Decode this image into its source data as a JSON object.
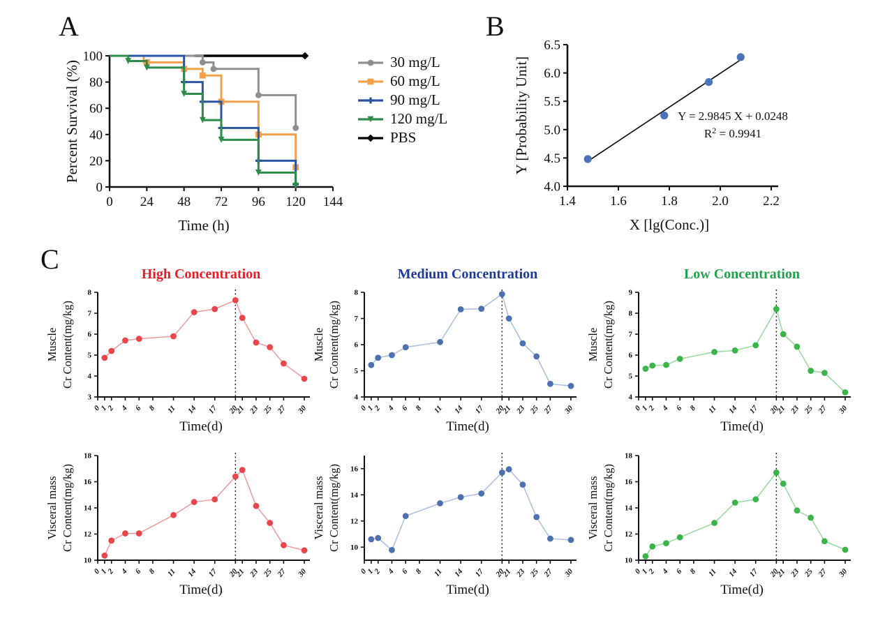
{
  "panels": {
    "a": "A",
    "b": "B",
    "c": "C"
  },
  "chart_data": [
    {
      "id": "survival",
      "panel": "A",
      "type": "survival",
      "title": "",
      "xlabel": "Time (h)",
      "ylabel": "Percent Survival (%)",
      "xlim": [
        0,
        144
      ],
      "ylim": [
        0,
        100
      ],
      "xticks": [
        0,
        24,
        48,
        72,
        96,
        120,
        144
      ],
      "xtick_labels": [
        "0",
        "24",
        "48",
        "72",
        "96",
        "120",
        "144"
      ],
      "yticks": [
        0,
        20,
        40,
        60,
        80,
        100
      ],
      "ytick_labels": [
        "0",
        "20",
        "40",
        "60",
        "80",
        "100"
      ],
      "grid": false,
      "legend_position": "right",
      "legend": [
        {
          "label": "30 mg/L",
          "color": "#8F8F8F",
          "marker": "circle"
        },
        {
          "label": "60 mg/L",
          "color": "#F5A04B",
          "marker": "square"
        },
        {
          "label": "90 mg/L",
          "color": "#2B55A3",
          "marker": "plus"
        },
        {
          "label": "120 mg/L",
          "color": "#2E8B4A",
          "marker": "triangle"
        },
        {
          "label": "PBS",
          "color": "#000000",
          "marker": "diamond"
        }
      ],
      "series": [
        {
          "name": "PBS",
          "color": "#000000",
          "marker": "diamond",
          "width": 3.4,
          "path": [
            [
              55,
              100
            ],
            [
              126,
              100
            ]
          ],
          "markers": [
            [
              126,
              100
            ]
          ]
        },
        {
          "name": "30 mg/L",
          "color": "#8F8F8F",
          "marker": "circle",
          "width": 3,
          "path": [
            [
              0,
              100
            ],
            [
              60,
              100
            ],
            [
              60,
              95
            ],
            [
              67,
              95
            ],
            [
              67,
              90
            ],
            [
              96,
              90
            ],
            [
              96,
              70
            ],
            [
              120,
              70
            ],
            [
              120,
              45
            ]
          ],
          "markers": [
            [
              60,
              95
            ],
            [
              67,
              90
            ],
            [
              96,
              70
            ],
            [
              120,
              45
            ]
          ]
        },
        {
          "name": "60 mg/L",
          "color": "#F5A04B",
          "marker": "square",
          "width": 3,
          "path": [
            [
              0,
              100
            ],
            [
              22,
              100
            ],
            [
              22,
              95
            ],
            [
              48,
              95
            ],
            [
              48,
              90
            ],
            [
              60,
              90
            ],
            [
              60,
              85
            ],
            [
              72,
              85
            ],
            [
              72,
              65
            ],
            [
              96,
              65
            ],
            [
              96,
              40
            ],
            [
              120,
              40
            ],
            [
              120,
              15
            ]
          ],
          "markers": [
            [
              24,
              95
            ],
            [
              48,
              90
            ],
            [
              60,
              85
            ],
            [
              72,
              65
            ],
            [
              96,
              40
            ],
            [
              120,
              15
            ]
          ]
        },
        {
          "name": "90 mg/L",
          "color": "#2B55A3",
          "marker": "plus",
          "width": 3,
          "path": [
            [
              0,
              100
            ],
            [
              48,
              100
            ],
            [
              48,
              80
            ],
            [
              60,
              80
            ],
            [
              60,
              65
            ],
            [
              72,
              65
            ],
            [
              72,
              45
            ],
            [
              96,
              45
            ],
            [
              96,
              20
            ],
            [
              120,
              20
            ],
            [
              120,
              2
            ]
          ],
          "markers": [
            [
              48,
              80
            ],
            [
              60,
              65
            ],
            [
              72,
              45
            ],
            [
              96,
              20
            ],
            [
              120,
              2
            ]
          ]
        },
        {
          "name": "120 mg/L",
          "color": "#2E8B4A",
          "marker": "triangle",
          "width": 3,
          "path": [
            [
              0,
              100
            ],
            [
              12,
              100
            ],
            [
              12,
              96
            ],
            [
              24,
              96
            ],
            [
              24,
              91
            ],
            [
              48,
              91
            ],
            [
              48,
              71
            ],
            [
              60,
              71
            ],
            [
              60,
              51
            ],
            [
              72,
              51
            ],
            [
              72,
              36
            ],
            [
              96,
              36
            ],
            [
              96,
              11
            ],
            [
              120,
              11
            ],
            [
              120,
              1
            ]
          ],
          "markers": [
            [
              12,
              96
            ],
            [
              24,
              91
            ],
            [
              48,
              71
            ],
            [
              60,
              51
            ],
            [
              72,
              36
            ],
            [
              96,
              11
            ],
            [
              120,
              1
            ]
          ]
        }
      ]
    },
    {
      "id": "probit",
      "panel": "B",
      "type": "scatter",
      "title": "",
      "xlabel": "X [lg(Conc.)]",
      "ylabel": "Y [Probability Unit]",
      "xlim": [
        1.4,
        2.2
      ],
      "ylim": [
        4.0,
        6.5
      ],
      "xticks": [
        1.4,
        1.6,
        1.8,
        2.0,
        2.2
      ],
      "xtick_labels": [
        "1.4",
        "1.6",
        "1.8",
        "2.0",
        "2.2"
      ],
      "yticks": [
        4.0,
        4.5,
        5.0,
        5.5,
        6.0,
        6.5
      ],
      "ytick_labels": [
        "4.0",
        "4.5",
        "5.0",
        "5.5",
        "6.0",
        "6.5"
      ],
      "grid": false,
      "point_color": "#4C72B8",
      "line_color": "#111111",
      "points": [
        [
          1.48,
          4.48
        ],
        [
          1.78,
          5.25
        ],
        [
          1.955,
          5.84
        ],
        [
          2.08,
          6.28
        ]
      ],
      "fit_line": [
        [
          1.48,
          4.442
        ],
        [
          2.08,
          6.233
        ]
      ],
      "annotation": {
        "equation": "Y = 2.9845 X + 0.0248",
        "r2_base": "R",
        "r2_sup": "2",
        "r2_rest": " = 0.9941"
      }
    },
    {
      "id": "muscle-high",
      "panel": "C",
      "row": 1,
      "col": 1,
      "type": "timeseries",
      "title": "High Concentration",
      "title_color": "#ED1C24",
      "ylabel_line1": "Muscle",
      "ylabel_line2": "Cr Content(mg/kg)",
      "xlabel": "Time(d)",
      "xlim": [
        0,
        30
      ],
      "ylim": [
        3,
        8
      ],
      "xticks": [
        0,
        1,
        2,
        4,
        6,
        8,
        11,
        14,
        17,
        20,
        21,
        23,
        25,
        27,
        30
      ],
      "xtick_labels": [
        "0",
        "1",
        "2",
        "4",
        "6",
        "8",
        "11",
        "14",
        "17",
        "20",
        "21",
        "23",
        "25",
        "27",
        "30"
      ],
      "yticks": [
        3,
        4,
        5,
        6,
        7,
        8
      ],
      "ytick_labels": [
        "3",
        "4",
        "5",
        "6",
        "7",
        "8"
      ],
      "vline": 20,
      "x": [
        1,
        2,
        4,
        6,
        11,
        14,
        17,
        20,
        21,
        23,
        25,
        27,
        30
      ],
      "y": [
        4.87,
        5.2,
        5.7,
        5.78,
        5.9,
        7.05,
        7.2,
        7.62,
        6.78,
        5.6,
        5.38,
        4.6,
        3.87
      ],
      "marker_color": "#E8464B",
      "line_color": "#F19A9C"
    },
    {
      "id": "muscle-medium",
      "panel": "C",
      "row": 1,
      "col": 2,
      "type": "timeseries",
      "title": "Medium Concentration",
      "title_color": "#1E3A9C",
      "ylabel_line1": "Muscle",
      "ylabel_line2": "Cr Content(mg/kg)",
      "xlabel": "Time(d)",
      "xlim": [
        0,
        30
      ],
      "ylim": [
        4,
        8
      ],
      "xticks": [
        0,
        1,
        2,
        4,
        6,
        8,
        11,
        14,
        17,
        20,
        21,
        23,
        25,
        27,
        30
      ],
      "xtick_labels": [
        "0",
        "1",
        "2",
        "4",
        "6",
        "8",
        "11",
        "14",
        "17",
        "20",
        "21",
        "23",
        "25",
        "27",
        "30"
      ],
      "yticks": [
        4,
        5,
        6,
        7,
        8
      ],
      "ytick_labels": [
        "4",
        "5",
        "6",
        "7",
        "8"
      ],
      "vline": 20,
      "x": [
        1,
        2,
        4,
        6,
        11,
        14,
        17,
        20,
        21,
        23,
        25,
        27,
        30
      ],
      "y": [
        5.22,
        5.5,
        5.6,
        5.9,
        6.1,
        7.35,
        7.37,
        7.93,
        7.0,
        6.05,
        5.55,
        4.5,
        4.42
      ],
      "marker_color": "#4C70B0",
      "line_color": "#A9BFE2"
    },
    {
      "id": "muscle-low",
      "panel": "C",
      "row": 1,
      "col": 3,
      "type": "timeseries",
      "title": "Low Concentration",
      "title_color": "#22A24C",
      "ylabel_line1": "Muscle",
      "ylabel_line2": "Cr Content(mg/kg)",
      "xlabel": "Time(d)",
      "xlim": [
        0,
        30
      ],
      "ylim": [
        4,
        9
      ],
      "xticks": [
        0,
        1,
        2,
        4,
        6,
        8,
        11,
        14,
        17,
        20,
        21,
        23,
        25,
        27,
        30
      ],
      "xtick_labels": [
        "0",
        "1",
        "2",
        "4",
        "6",
        "8",
        "11",
        "14",
        "17",
        "20",
        "21",
        "23",
        "25",
        "27",
        "30"
      ],
      "yticks": [
        4,
        5,
        6,
        7,
        8,
        9
      ],
      "ytick_labels": [
        "4",
        "5",
        "6",
        "7",
        "8",
        "9"
      ],
      "vline": 20,
      "x": [
        1,
        2,
        4,
        6,
        11,
        14,
        17,
        20,
        21,
        23,
        25,
        27,
        30
      ],
      "y": [
        5.35,
        5.5,
        5.53,
        5.82,
        6.15,
        6.22,
        6.47,
        8.2,
        7.0,
        6.4,
        5.25,
        5.15,
        4.22
      ],
      "marker_color": "#3BB54A",
      "line_color": "#97D99E"
    },
    {
      "id": "visceral-high",
      "panel": "C",
      "row": 2,
      "col": 1,
      "type": "timeseries",
      "title": "",
      "title_color": "#ED1C24",
      "ylabel_line1": "Visceral mass",
      "ylabel_line2": "Cr Content(mg/kg)",
      "xlabel": "Time(d)",
      "xlim": [
        0,
        30
      ],
      "ylim": [
        10,
        18
      ],
      "xticks": [
        0,
        1,
        2,
        4,
        6,
        8,
        11,
        14,
        17,
        20,
        21,
        23,
        25,
        27,
        30
      ],
      "xtick_labels": [
        "0",
        "1",
        "2",
        "4",
        "6",
        "8",
        "11",
        "14",
        "17",
        "20",
        "21",
        "23",
        "25",
        "27",
        "30"
      ],
      "yticks": [
        10,
        12,
        14,
        16,
        18
      ],
      "ytick_labels": [
        "10",
        "12",
        "14",
        "16",
        "18"
      ],
      "vline": 20,
      "x": [
        1,
        2,
        4,
        6,
        11,
        14,
        17,
        20,
        21,
        23,
        25,
        27,
        30
      ],
      "y": [
        10.35,
        11.5,
        12.05,
        12.05,
        13.45,
        14.45,
        14.65,
        16.4,
        16.9,
        14.15,
        12.85,
        11.15,
        10.75
      ],
      "marker_color": "#E8464B",
      "line_color": "#F19A9C"
    },
    {
      "id": "visceral-medium",
      "panel": "C",
      "row": 2,
      "col": 2,
      "type": "timeseries",
      "title": "",
      "title_color": "#1E3A9C",
      "ylabel_line1": "Visceral mass",
      "ylabel_line2": "Cr Content(mg/kg)",
      "xlabel": "Time(d)",
      "xlim": [
        0,
        30
      ],
      "ylim": [
        9,
        17
      ],
      "xticks": [
        0,
        1,
        2,
        4,
        6,
        8,
        11,
        14,
        17,
        20,
        21,
        23,
        25,
        27,
        30
      ],
      "xtick_labels": [
        "0",
        "1",
        "2",
        "4",
        "6",
        "8",
        "11",
        "14",
        "17",
        "20",
        "21",
        "23",
        "25",
        "27",
        "30"
      ],
      "yticks": [
        10,
        12,
        14,
        16
      ],
      "ytick_labels": [
        "10",
        "12",
        "14",
        "16"
      ],
      "vline": 20,
      "x": [
        1,
        2,
        4,
        6,
        11,
        14,
        17,
        20,
        21,
        23,
        25,
        27,
        30
      ],
      "y": [
        10.6,
        10.7,
        9.78,
        12.38,
        13.35,
        13.82,
        14.1,
        15.7,
        15.95,
        14.78,
        12.3,
        10.65,
        10.55
      ],
      "marker_color": "#4C70B0",
      "line_color": "#A9BFE2"
    },
    {
      "id": "visceral-low",
      "panel": "C",
      "row": 2,
      "col": 3,
      "type": "timeseries",
      "title": "",
      "title_color": "#22A24C",
      "ylabel_line1": "Visceral mass",
      "ylabel_line2": "Cr Content(mg/kg)",
      "xlabel": "Time(d)",
      "xlim": [
        0,
        30
      ],
      "ylim": [
        10,
        18
      ],
      "xticks": [
        0,
        1,
        2,
        4,
        6,
        8,
        11,
        14,
        17,
        20,
        21,
        23,
        25,
        27,
        30
      ],
      "xtick_labels": [
        "0",
        "1",
        "2",
        "4",
        "6",
        "8",
        "11",
        "14",
        "17",
        "20",
        "21",
        "23",
        "25",
        "27",
        "30"
      ],
      "yticks": [
        10,
        12,
        14,
        16,
        18
      ],
      "ytick_labels": [
        "10",
        "12",
        "14",
        "16",
        "18"
      ],
      "vline": 20,
      "x": [
        1,
        2,
        4,
        6,
        11,
        14,
        17,
        20,
        21,
        23,
        25,
        27,
        30
      ],
      "y": [
        10.3,
        11.05,
        11.3,
        11.75,
        12.85,
        14.4,
        14.65,
        16.7,
        15.85,
        13.8,
        13.25,
        11.45,
        10.8
      ],
      "marker_color": "#3BB54A",
      "line_color": "#97D99E"
    }
  ]
}
